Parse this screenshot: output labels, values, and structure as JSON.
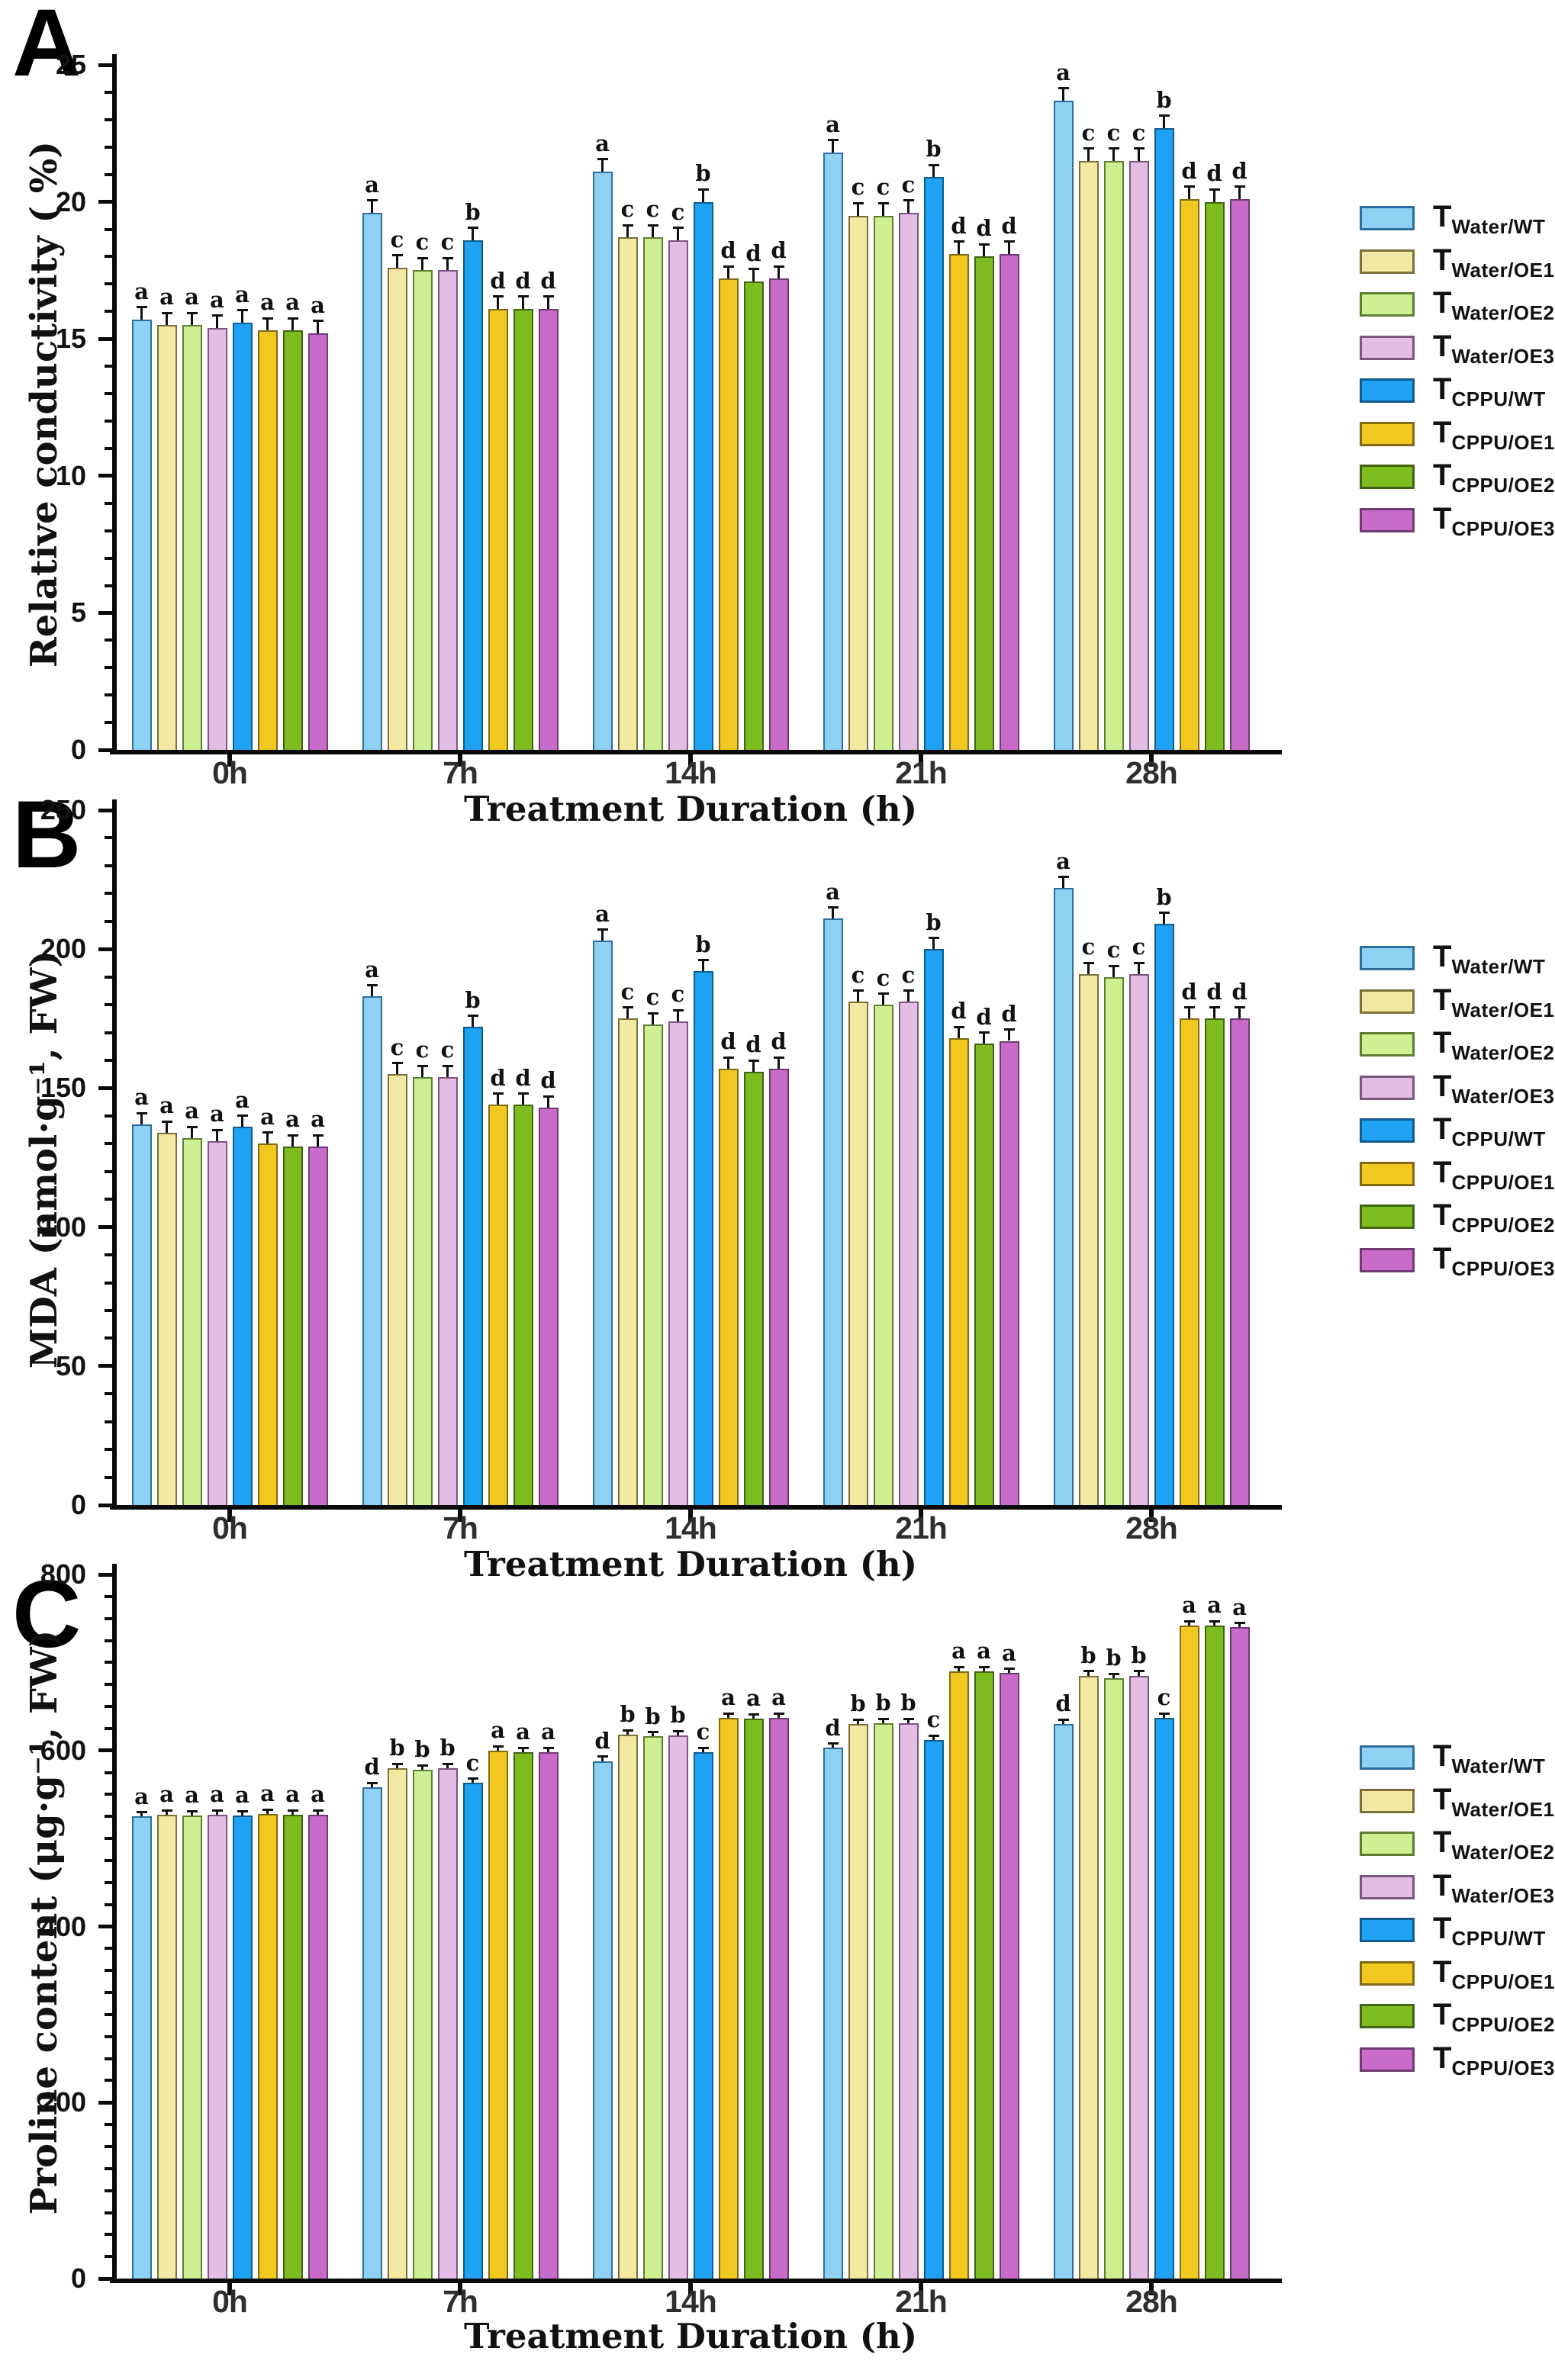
{
  "figure": {
    "background": "#ffffff"
  },
  "x_axis": {
    "title": "Treatment Duration (h)"
  },
  "legend": {
    "entries": [
      {
        "main": "T",
        "sub": "Water/WT",
        "fill": "#8FD1F2",
        "stroke": "#2E6E9E"
      },
      {
        "main": "T",
        "sub": "Water/OE1",
        "fill": "#F3E9A2",
        "stroke": "#7A713A"
      },
      {
        "main": "T",
        "sub": "Water/OE2",
        "fill": "#CFEF93",
        "stroke": "#5E7F33"
      },
      {
        "main": "T",
        "sub": "Water/OE3",
        "fill": "#E3BDE3",
        "stroke": "#7C5580"
      },
      {
        "main": "T",
        "sub": "CPPU/WT",
        "fill": "#1FA2F4",
        "stroke": "#0F5C8C"
      },
      {
        "main": "T",
        "sub": "CPPU/OE1",
        "fill": "#F0C81F",
        "stroke": "#806A12"
      },
      {
        "main": "T",
        "sub": "CPPU/OE2",
        "fill": "#7FBC20",
        "stroke": "#416412"
      },
      {
        "main": "T",
        "sub": "CPPU/OE3",
        "fill": "#C96BC9",
        "stroke": "#6F3A73"
      }
    ]
  },
  "chart_data": [
    {
      "type": "bar",
      "panel": "A",
      "ylabel": "Relative conductivity ( %)",
      "xlabel": "Treatment Duration (h)",
      "ylim": [
        0,
        25
      ],
      "yticks": [
        0,
        5,
        10,
        15,
        20,
        25
      ],
      "ytick_minor": 1,
      "categories": [
        "0h",
        "7h",
        "14h",
        "21h",
        "28h"
      ],
      "error_bar": 0.45,
      "legend_position": "right",
      "series": [
        {
          "name": "T_Water/WT",
          "values": [
            15.7,
            19.6,
            21.1,
            21.8,
            23.7
          ],
          "sig": [
            "a",
            "a",
            "a",
            "a",
            "a"
          ]
        },
        {
          "name": "T_Water/OE1",
          "values": [
            15.5,
            17.6,
            18.7,
            19.5,
            21.5
          ],
          "sig": [
            "a",
            "c",
            "c",
            "c",
            "c"
          ]
        },
        {
          "name": "T_Water/OE2",
          "values": [
            15.5,
            17.5,
            18.7,
            19.5,
            21.5
          ],
          "sig": [
            "a",
            "c",
            "c",
            "c",
            "c"
          ]
        },
        {
          "name": "T_Water/OE3",
          "values": [
            15.4,
            17.5,
            18.6,
            19.6,
            21.5
          ],
          "sig": [
            "a",
            "c",
            "c",
            "c",
            "c"
          ]
        },
        {
          "name": "T_CPPU/WT",
          "values": [
            15.6,
            18.6,
            20.0,
            20.9,
            22.7
          ],
          "sig": [
            "a",
            "b",
            "b",
            "b",
            "b"
          ]
        },
        {
          "name": "T_CPPU/OE1",
          "values": [
            15.3,
            16.1,
            17.2,
            18.1,
            20.1
          ],
          "sig": [
            "a",
            "d",
            "d",
            "d",
            "d"
          ]
        },
        {
          "name": "T_CPPU/OE2",
          "values": [
            15.3,
            16.1,
            17.1,
            18.0,
            20.0
          ],
          "sig": [
            "a",
            "d",
            "d",
            "d",
            "d"
          ]
        },
        {
          "name": "T_CPPU/OE3",
          "values": [
            15.2,
            16.1,
            17.2,
            18.1,
            20.1
          ],
          "sig": [
            "a",
            "d",
            "d",
            "d",
            "d"
          ]
        }
      ]
    },
    {
      "type": "bar",
      "panel": "B",
      "ylabel": "MDA (nmol·g⁻¹, FW)",
      "xlabel": "Treatment Duration (h)",
      "ylim": [
        0,
        250
      ],
      "yticks": [
        0,
        50,
        100,
        150,
        200,
        250
      ],
      "ytick_minor": 10,
      "categories": [
        "0h",
        "7h",
        "14h",
        "21h",
        "28h"
      ],
      "error_bar": 4,
      "legend_position": "right",
      "series": [
        {
          "name": "T_Water/WT",
          "values": [
            137,
            183,
            203,
            211,
            222
          ],
          "sig": [
            "a",
            "a",
            "a",
            "a",
            "a"
          ]
        },
        {
          "name": "T_Water/OE1",
          "values": [
            134,
            155,
            175,
            181,
            191
          ],
          "sig": [
            "a",
            "c",
            "c",
            "c",
            "c"
          ]
        },
        {
          "name": "T_Water/OE2",
          "values": [
            132,
            154,
            173,
            180,
            190
          ],
          "sig": [
            "a",
            "c",
            "c",
            "c",
            "c"
          ]
        },
        {
          "name": "T_Water/OE3",
          "values": [
            131,
            154,
            174,
            181,
            191
          ],
          "sig": [
            "a",
            "c",
            "c",
            "c",
            "c"
          ]
        },
        {
          "name": "T_CPPU/WT",
          "values": [
            136,
            172,
            192,
            200,
            209
          ],
          "sig": [
            "a",
            "b",
            "b",
            "b",
            "b"
          ]
        },
        {
          "name": "T_CPPU/OE1",
          "values": [
            130,
            144,
            157,
            168,
            175
          ],
          "sig": [
            "a",
            "d",
            "d",
            "d",
            "d"
          ]
        },
        {
          "name": "T_CPPU/OE2",
          "values": [
            129,
            144,
            156,
            166,
            175
          ],
          "sig": [
            "a",
            "d",
            "d",
            "d",
            "d"
          ]
        },
        {
          "name": "T_CPPU/OE3",
          "values": [
            129,
            143,
            157,
            167,
            175
          ],
          "sig": [
            "a",
            "d",
            "d",
            "d",
            "d"
          ]
        }
      ]
    },
    {
      "type": "bar",
      "panel": "C",
      "ylabel": "Proline content (μg·g⁻¹, FW)",
      "xlabel": "Treatment Duration (h)",
      "ylim": [
        0,
        800
      ],
      "yticks": [
        0,
        200,
        400,
        600,
        800
      ],
      "ytick_minor": 25,
      "categories": [
        "0h",
        "7h",
        "14h",
        "21h",
        "28h"
      ],
      "error_bar": 5,
      "legend_position": "right",
      "series": [
        {
          "name": "T_Water/WT",
          "values": [
            525,
            558,
            588,
            603,
            630
          ],
          "sig": [
            "a",
            "d",
            "d",
            "d",
            "d"
          ]
        },
        {
          "name": "T_Water/OE1",
          "values": [
            527,
            580,
            618,
            630,
            685
          ],
          "sig": [
            "a",
            "b",
            "b",
            "b",
            "b"
          ]
        },
        {
          "name": "T_Water/OE2",
          "values": [
            526,
            578,
            616,
            631,
            682
          ],
          "sig": [
            "a",
            "b",
            "b",
            "b",
            "b"
          ]
        },
        {
          "name": "T_Water/OE3",
          "values": [
            527,
            580,
            617,
            631,
            685
          ],
          "sig": [
            "a",
            "b",
            "b",
            "b",
            "b"
          ]
        },
        {
          "name": "T_CPPU/WT",
          "values": [
            526,
            563,
            598,
            612,
            637
          ],
          "sig": [
            "a",
            "c",
            "c",
            "c",
            "c"
          ]
        },
        {
          "name": "T_CPPU/OE1",
          "values": [
            528,
            600,
            637,
            690,
            742
          ],
          "sig": [
            "a",
            "a",
            "a",
            "a",
            "a"
          ]
        },
        {
          "name": "T_CPPU/OE2",
          "values": [
            527,
            598,
            636,
            690,
            742
          ],
          "sig": [
            "a",
            "a",
            "a",
            "a",
            "a"
          ]
        },
        {
          "name": "T_CPPU/OE3",
          "values": [
            527,
            598,
            637,
            688,
            740
          ],
          "sig": [
            "a",
            "a",
            "a",
            "a",
            "a"
          ]
        }
      ]
    }
  ]
}
